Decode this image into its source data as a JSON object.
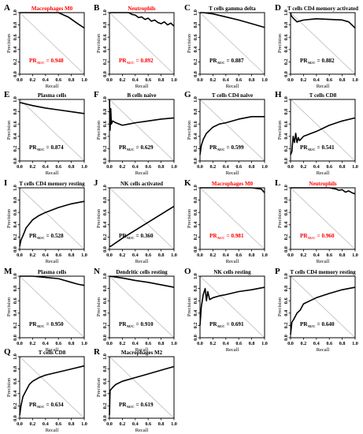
{
  "colors": {
    "highlight": "#ff0000",
    "text": "#000000",
    "diagonal": "#bbbbbb",
    "curve": "#000000"
  },
  "chart_data": [
    {
      "type": "line",
      "label": "A",
      "title": "Macrophages M0",
      "highlight": true,
      "auc_prefix": "PR",
      "auc_sub": "AUC",
      "auc_value": "= 0.948",
      "xlabel": "Recall",
      "ylabel": "Precision",
      "xlim": [
        0,
        1
      ],
      "ylim": [
        0,
        1
      ],
      "x": [
        0,
        0.02,
        0.2,
        0.4,
        0.6,
        0.75,
        0.9,
        1.0
      ],
      "y": [
        1,
        1,
        1,
        1,
        1,
        0.93,
        0.82,
        0.75
      ]
    },
    {
      "type": "line",
      "label": "B",
      "title": "Neutrophils",
      "highlight": true,
      "auc_prefix": "PR",
      "auc_sub": "AUC",
      "auc_value": "= 0.892",
      "xlabel": "Recall",
      "ylabel": "Precision",
      "xlim": [
        0,
        1
      ],
      "ylim": [
        0,
        1
      ],
      "x": [
        0,
        0.1,
        0.3,
        0.35,
        0.4,
        0.45,
        0.5,
        0.55,
        0.6,
        0.65,
        0.7,
        0.75,
        0.8,
        0.85,
        0.9,
        0.95,
        1.0
      ],
      "y": [
        1,
        1,
        1,
        0.97,
        0.96,
        0.92,
        0.93,
        0.89,
        0.91,
        0.86,
        0.88,
        0.84,
        0.82,
        0.85,
        0.8,
        0.83,
        0.78
      ]
    },
    {
      "type": "line",
      "label": "C",
      "title": "T cells gamma delta",
      "highlight": false,
      "auc_prefix": "PR",
      "auc_sub": "AUC",
      "auc_value": "= 0.887",
      "xlabel": "Recall",
      "ylabel": "Precision",
      "xlim": [
        0,
        1
      ],
      "ylim": [
        0,
        1
      ],
      "x": [
        0,
        0.05,
        0.2,
        0.4,
        0.6,
        0.8,
        1.0
      ],
      "y": [
        1,
        1,
        0.98,
        0.93,
        0.88,
        0.82,
        0.76
      ]
    },
    {
      "type": "line",
      "label": "D",
      "title": "T cells CD4 memory activated",
      "highlight": false,
      "auc_prefix": "PR",
      "auc_sub": "AUC",
      "auc_value": "= 0.882",
      "xlabel": "Recall",
      "ylabel": "Precision",
      "xlim": [
        0,
        1
      ],
      "ylim": [
        0,
        1
      ],
      "x": [
        0,
        0.01,
        0.05,
        0.1,
        0.2,
        0.4,
        0.6,
        0.8,
        0.9,
        1.0
      ],
      "y": [
        1,
        0.95,
        0.9,
        0.85,
        0.88,
        0.9,
        0.89,
        0.88,
        0.85,
        0.75
      ]
    },
    {
      "type": "line",
      "label": "E",
      "title": "Plasma cells",
      "highlight": false,
      "auc_prefix": "PR",
      "auc_sub": "AUC",
      "auc_value": "= 0.874",
      "xlabel": "Recall",
      "ylabel": "Precision",
      "xlim": [
        0,
        1
      ],
      "ylim": [
        0,
        1
      ],
      "x": [
        0,
        0.2,
        0.4,
        0.6,
        0.8,
        1.0
      ],
      "y": [
        0.95,
        0.9,
        0.86,
        0.83,
        0.8,
        0.77
      ]
    },
    {
      "type": "line",
      "label": "F",
      "title": "B cells naive",
      "highlight": false,
      "auc_prefix": "PR",
      "auc_sub": "AUC",
      "auc_value": "= 0.629",
      "xlabel": "Recall",
      "ylabel": "Precision",
      "xlim": [
        0,
        1
      ],
      "ylim": [
        0,
        1
      ],
      "x": [
        0,
        0.01,
        0.02,
        0.03,
        0.05,
        0.1,
        0.2,
        0.3,
        0.4,
        0.6,
        0.8,
        1.0
      ],
      "y": [
        1,
        0.5,
        0.85,
        0.6,
        0.65,
        0.62,
        0.58,
        0.6,
        0.62,
        0.65,
        0.68,
        0.7
      ]
    },
    {
      "type": "line",
      "label": "G",
      "title": "T cells CD4 naive",
      "highlight": false,
      "auc_prefix": "PR",
      "auc_sub": "AUC",
      "auc_value": "= 0.599",
      "xlabel": "Recall",
      "ylabel": "Precision",
      "xlim": [
        0,
        1
      ],
      "ylim": [
        0,
        1
      ],
      "x": [
        0,
        0.02,
        0.05,
        0.1,
        0.2,
        0.3,
        0.4,
        0.6,
        0.8,
        1.0
      ],
      "y": [
        0.1,
        0.25,
        0.35,
        0.45,
        0.55,
        0.6,
        0.62,
        0.68,
        0.72,
        0.72
      ]
    },
    {
      "type": "line",
      "label": "H",
      "title": "T cells CD8",
      "highlight": false,
      "auc_prefix": "PR",
      "auc_sub": "AUC",
      "auc_value": "= 0.541",
      "xlabel": "Recall",
      "ylabel": "Precision",
      "xlim": [
        0,
        1
      ],
      "ylim": [
        0,
        1
      ],
      "x": [
        0,
        0.02,
        0.04,
        0.06,
        0.08,
        0.1,
        0.12,
        0.14,
        0.2,
        0.4,
        0.6,
        0.8,
        1.0
      ],
      "y": [
        0.1,
        0.15,
        0.4,
        0.3,
        0.45,
        0.3,
        0.38,
        0.33,
        0.4,
        0.48,
        0.58,
        0.65,
        0.7
      ]
    },
    {
      "type": "line",
      "label": "I",
      "title": "T cells CD4 memory resting",
      "highlight": false,
      "auc_prefix": "PR",
      "auc_sub": "AUC",
      "auc_value": "= 0.528",
      "xlabel": "Recall",
      "ylabel": "Precision",
      "xlim": [
        0,
        1
      ],
      "ylim": [
        0,
        1
      ],
      "x": [
        0,
        0.02,
        0.05,
        0.1,
        0.2,
        0.3,
        0.4,
        0.6,
        0.8,
        1.0
      ],
      "y": [
        0.05,
        0.15,
        0.22,
        0.35,
        0.48,
        0.55,
        0.6,
        0.68,
        0.74,
        0.78
      ]
    },
    {
      "type": "line",
      "label": "J",
      "title": "NK cells activated",
      "highlight": false,
      "auc_prefix": "PR",
      "auc_sub": "AUC",
      "auc_value": "= 0.360",
      "xlabel": "Recall",
      "ylabel": "Precision",
      "xlim": [
        0,
        1
      ],
      "ylim": [
        0,
        1
      ],
      "x": [
        0,
        0.02,
        0.2,
        0.4,
        0.6,
        0.8,
        1.0
      ],
      "y": [
        0.05,
        0.05,
        0.18,
        0.31,
        0.44,
        0.57,
        0.7
      ]
    },
    {
      "type": "line",
      "label": "K",
      "title": "Macrophages M0",
      "highlight": true,
      "auc_prefix": "PR",
      "auc_sub": "AUC",
      "auc_value": "= 0.981",
      "xlabel": "Recall",
      "ylabel": "Precision",
      "xlim": [
        0,
        1
      ],
      "ylim": [
        0,
        1
      ],
      "x": [
        0,
        0.2,
        0.4,
        0.6,
        0.8,
        0.95,
        1.0
      ],
      "y": [
        1,
        1,
        1,
        1,
        1,
        0.98,
        0.92
      ]
    },
    {
      "type": "line",
      "label": "L",
      "title": "Neutrophils",
      "highlight": true,
      "auc_prefix": "PR",
      "auc_sub": "AUC",
      "auc_value": "= 0.960",
      "xlabel": "Recall",
      "ylabel": "Precision",
      "xlim": [
        0,
        1
      ],
      "ylim": [
        0,
        1
      ],
      "x": [
        0,
        0.2,
        0.4,
        0.6,
        0.7,
        0.75,
        0.8,
        0.85,
        0.9,
        0.95,
        1.0
      ],
      "y": [
        1,
        1,
        1,
        1,
        0.98,
        0.96,
        0.97,
        0.93,
        0.95,
        0.92,
        0.9
      ]
    },
    {
      "type": "line",
      "label": "M",
      "title": "Plasma cells",
      "highlight": false,
      "auc_prefix": "PR",
      "auc_sub": "AUC",
      "auc_value": "= 0.950",
      "xlabel": "Recall",
      "ylabel": "Precision",
      "xlim": [
        0,
        1
      ],
      "ylim": [
        0,
        1
      ],
      "x": [
        0,
        0.2,
        0.4,
        0.6,
        0.8,
        0.9,
        1.0
      ],
      "y": [
        1,
        1,
        0.98,
        0.96,
        0.9,
        0.87,
        0.85
      ]
    },
    {
      "type": "line",
      "label": "N",
      "title": "Dendritic cells resting",
      "highlight": false,
      "auc_prefix": "PR",
      "auc_sub": "AUC",
      "auc_value": "= 0.910",
      "xlabel": "Recall",
      "ylabel": "Precision",
      "xlim": [
        0,
        1
      ],
      "ylim": [
        0,
        1
      ],
      "x": [
        0,
        0.2,
        0.4,
        0.6,
        0.8,
        1.0
      ],
      "y": [
        1,
        0.97,
        0.93,
        0.9,
        0.86,
        0.82
      ]
    },
    {
      "type": "line",
      "label": "O",
      "title": "NK cells resting",
      "highlight": false,
      "auc_prefix": "PR",
      "auc_sub": "AUC",
      "auc_value": "= 0.691",
      "xlabel": "Recall",
      "ylabel": "Precision",
      "xlim": [
        0,
        1
      ],
      "ylim": [
        0,
        1
      ],
      "x": [
        0,
        0.02,
        0.05,
        0.08,
        0.1,
        0.12,
        0.15,
        0.2,
        0.3,
        0.4,
        0.6,
        0.8,
        1.0
      ],
      "y": [
        0.2,
        0.5,
        0.7,
        0.8,
        0.6,
        0.75,
        0.62,
        0.65,
        0.68,
        0.7,
        0.75,
        0.78,
        0.82
      ]
    },
    {
      "type": "line",
      "label": "P",
      "title": "T cells CD4 memory resting",
      "highlight": false,
      "auc_prefix": "PR",
      "auc_sub": "AUC",
      "auc_value": "= 0.640",
      "xlabel": "Recall",
      "ylabel": "Precision",
      "xlim": [
        0,
        1
      ],
      "ylim": [
        0,
        1
      ],
      "x": [
        0,
        0.02,
        0.05,
        0.1,
        0.15,
        0.2,
        0.3,
        0.4,
        0.6,
        0.8,
        1.0
      ],
      "y": [
        0.05,
        0.25,
        0.3,
        0.4,
        0.45,
        0.55,
        0.6,
        0.65,
        0.72,
        0.78,
        0.82
      ]
    },
    {
      "type": "line",
      "label": "Q",
      "title": "T cells CD8",
      "highlight": false,
      "auc_prefix": "PR",
      "auc_sub": "AUC",
      "auc_value": "= 0.634",
      "xlabel": "Recall",
      "ylabel": "Precision",
      "xlim": [
        0,
        1
      ],
      "ylim": [
        0,
        1
      ],
      "x": [
        0,
        0.02,
        0.05,
        0.1,
        0.15,
        0.2,
        0.3,
        0.4,
        0.6,
        0.8,
        1.0
      ],
      "y": [
        0.05,
        0.2,
        0.35,
        0.45,
        0.55,
        0.6,
        0.66,
        0.7,
        0.75,
        0.8,
        0.85
      ]
    },
    {
      "type": "line",
      "label": "R",
      "title": "Macrophages M2",
      "highlight": false,
      "auc_prefix": "PR",
      "auc_sub": "AUC",
      "auc_value": "= 0.619",
      "xlabel": "Recall",
      "ylabel": "Precision",
      "xlim": [
        0,
        1
      ],
      "ylim": [
        0,
        1
      ],
      "x": [
        0,
        0.01,
        0.05,
        0.1,
        0.2,
        0.4,
        0.6,
        0.8,
        1.0
      ],
      "y": [
        0.05,
        0.45,
        0.5,
        0.55,
        0.6,
        0.66,
        0.72,
        0.78,
        0.84
      ]
    }
  ]
}
